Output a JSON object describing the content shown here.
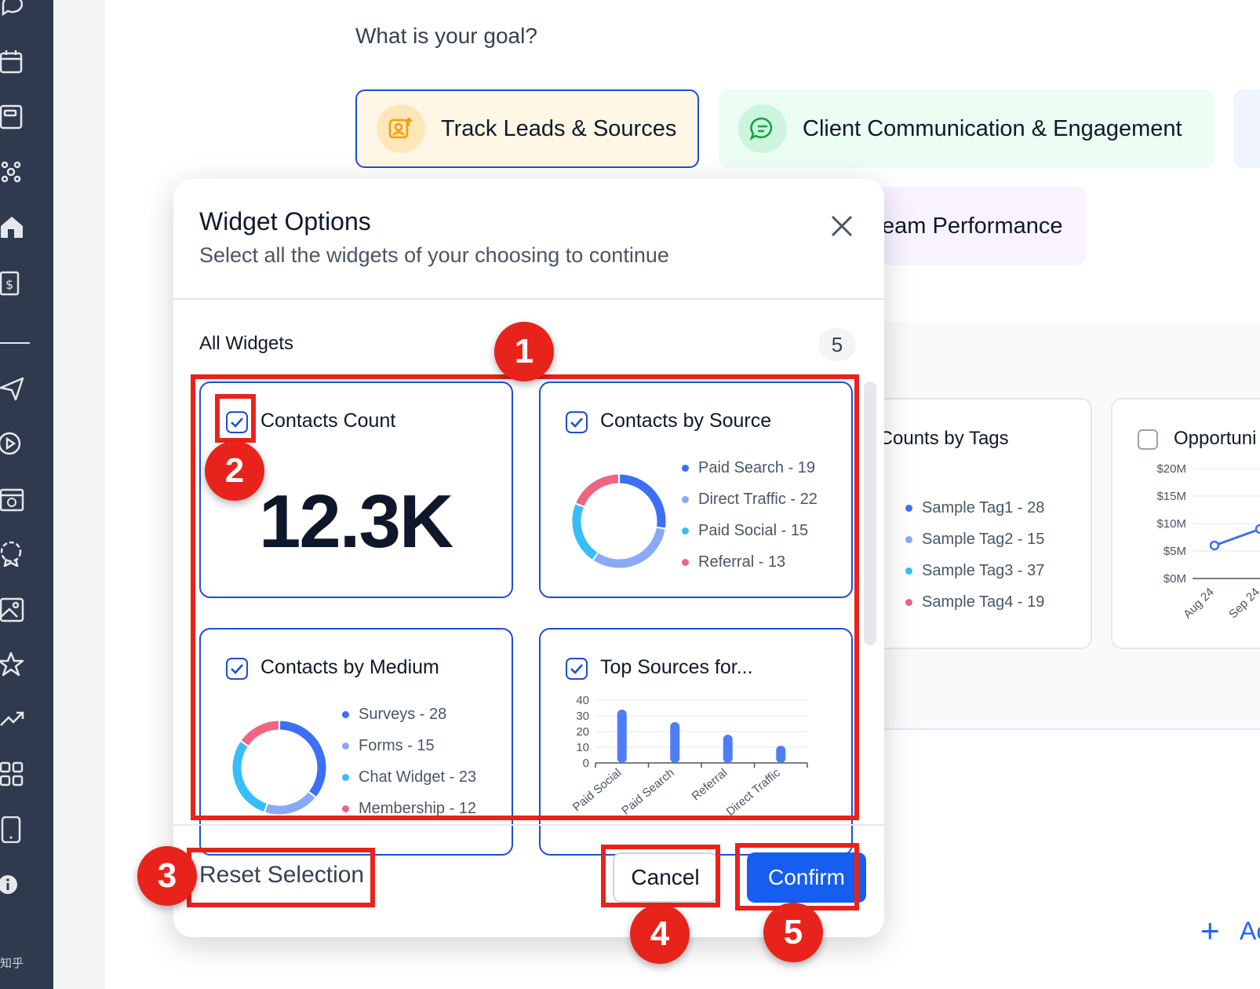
{
  "page": {
    "goal_question": "What is your goal?",
    "goals": [
      {
        "label": "Track Leads & Sources",
        "icon": "lead-upload-icon"
      },
      {
        "label": "Client Communication & Engagement",
        "icon": "chat-bubble-icon"
      },
      {
        "label": "eam Performance",
        "icon": ""
      }
    ],
    "bg_tags_card": {
      "title": "s Counts by Tags",
      "legend": [
        {
          "label": "Sample Tag1 - 28",
          "color": "#3b6ff5"
        },
        {
          "label": "Sample Tag2 - 15",
          "color": "#8aa9f8"
        },
        {
          "label": "Sample Tag3 - 37",
          "color": "#38bdf8"
        },
        {
          "label": "Sample Tag4 - 19",
          "color": "#f06482"
        }
      ]
    },
    "bg_opp_card": {
      "title": "Opportuni",
      "chart_data": {
        "type": "line",
        "y_ticks": [
          "$20M",
          "$15M",
          "$10M",
          "$5M",
          "$0M"
        ],
        "x_ticks": [
          "Aug 24",
          "Sep 24"
        ],
        "ylim": [
          0,
          20
        ],
        "series": [
          {
            "values": [
              6,
              9
            ]
          }
        ]
      }
    },
    "add_label": "Ac"
  },
  "modal": {
    "title": "Widget Options",
    "subtitle": "Select all the widgets of your choosing to continue",
    "all_widgets_label": "All Widgets",
    "all_widgets_count": "5",
    "widgets": [
      {
        "title": "Contacts Count",
        "checked": true,
        "value": "12.3K"
      },
      {
        "title": "Contacts by Source",
        "checked": true,
        "chart_data": {
          "type": "pie",
          "labels": [
            "Paid Search",
            "Direct Traffic",
            "Paid Social",
            "Referral"
          ],
          "values": [
            19,
            22,
            15,
            13
          ],
          "colors": [
            "#3b6ff5",
            "#8aa9f8",
            "#38bdf8",
            "#f06482"
          ]
        },
        "legend": [
          "Paid Search - 19",
          "Direct Traffic - 22",
          "Paid Social - 15",
          "Referral - 13"
        ]
      },
      {
        "title": "Contacts by Medium",
        "checked": true,
        "chart_data": {
          "type": "pie",
          "labels": [
            "Surveys",
            "Forms",
            "Chat Widget",
            "Membership"
          ],
          "values": [
            28,
            15,
            23,
            12
          ],
          "colors": [
            "#3b6ff5",
            "#8aa9f8",
            "#38bdf8",
            "#f06482"
          ]
        },
        "legend": [
          "Surveys - 28",
          "Forms - 15",
          "Chat Widget - 23",
          "Membership - 12"
        ]
      },
      {
        "title": "Top Sources for...",
        "checked": true,
        "chart_data": {
          "type": "bar",
          "categories": [
            "Paid Social",
            "Paid Search",
            "Referral",
            "Direct Traffic"
          ],
          "values": [
            34,
            26,
            18,
            11
          ],
          "ylim": [
            0,
            40
          ],
          "y_ticks": [
            0,
            10,
            20,
            30,
            40
          ],
          "color": "#4f7df3"
        }
      }
    ],
    "reset_label": "Reset Selection",
    "cancel_label": "Cancel",
    "confirm_label": "Confirm",
    "accent": "#155eef"
  },
  "annotations": [
    "1",
    "2",
    "3",
    "4",
    "5"
  ],
  "sidebar": {
    "icons": [
      "chat-icon",
      "calendar-icon",
      "contacts-card-icon",
      "people-network-icon",
      "home-icon",
      "billing-icon",
      "send-icon",
      "play-icon",
      "website-icon",
      "badge-icon",
      "image-icon",
      "star-icon",
      "trending-icon",
      "apps-grid-icon",
      "mobile-icon",
      "info-icon"
    ],
    "footer_text": "知乎"
  }
}
